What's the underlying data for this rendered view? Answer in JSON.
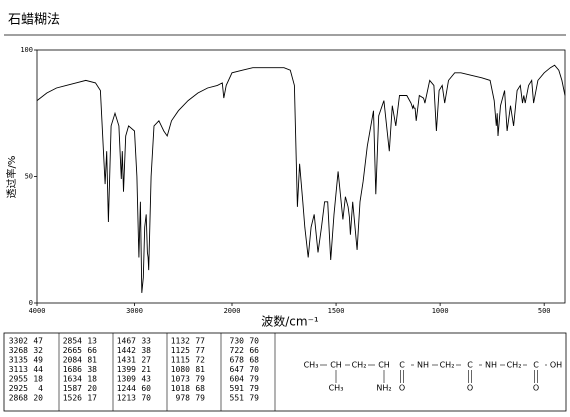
{
  "chart_data": {
    "type": "line",
    "title": "石蜡糊法",
    "x_label": "波数/cm⁻¹",
    "y_label": "透过率/%",
    "x_scale_change": 2000,
    "color": "#000000",
    "x": [
      4000,
      3900,
      3800,
      3700,
      3600,
      3500,
      3400,
      3350,
      3302,
      3285,
      3268,
      3240,
      3200,
      3160,
      3135,
      3125,
      3113,
      3090,
      3060,
      3000,
      2975,
      2955,
      2940,
      2925,
      2910,
      2895,
      2880,
      2868,
      2860,
      2854,
      2830,
      2800,
      2750,
      2700,
      2665,
      2620,
      2550,
      2450,
      2350,
      2250,
      2150,
      2100,
      2084,
      2060,
      2000,
      1950,
      1900,
      1850,
      1800,
      1750,
      1720,
      1700,
      1686,
      1675,
      1660,
      1650,
      1634,
      1620,
      1605,
      1587,
      1570,
      1555,
      1540,
      1526,
      1510,
      1490,
      1467,
      1455,
      1442,
      1436,
      1431,
      1420,
      1399,
      1385,
      1370,
      1350,
      1320,
      1309,
      1295,
      1270,
      1244,
      1230,
      1213,
      1195,
      1160,
      1140,
      1132,
      1128,
      1125,
      1120,
      1115,
      1100,
      1080,
      1076,
      1073,
      1050,
      1030,
      1018,
      1005,
      990,
      978,
      960,
      930,
      900,
      850,
      800,
      760,
      740,
      730,
      726,
      722,
      710,
      690,
      678,
      662,
      647,
      630,
      615,
      604,
      598,
      591,
      575,
      560,
      551,
      530,
      500,
      470,
      450,
      430,
      415,
      400
    ],
    "values": [
      80,
      83,
      85,
      86,
      87,
      88,
      87,
      84,
      47,
      60,
      32,
      70,
      75,
      70,
      49,
      60,
      44,
      66,
      70,
      68,
      50,
      18,
      40,
      4,
      10,
      30,
      35,
      20,
      18,
      13,
      50,
      70,
      72,
      68,
      66,
      72,
      76,
      80,
      83,
      85,
      86,
      87,
      81,
      86,
      91,
      92,
      93,
      93,
      93,
      93,
      92,
      86,
      38,
      55,
      40,
      30,
      18,
      30,
      35,
      20,
      30,
      40,
      40,
      17,
      35,
      52,
      33,
      42,
      38,
      34,
      27,
      40,
      21,
      40,
      48,
      62,
      76,
      43,
      74,
      80,
      60,
      78,
      70,
      82,
      82,
      79,
      77,
      78,
      77,
      77,
      72,
      82,
      81,
      80,
      79,
      88,
      86,
      68,
      84,
      86,
      79,
      88,
      91,
      91,
      90,
      89,
      88,
      80,
      70,
      75,
      66,
      78,
      84,
      68,
      78,
      70,
      84,
      86,
      79,
      82,
      79,
      86,
      88,
      79,
      88,
      91,
      93,
      94,
      92,
      88,
      82
    ],
    "xlim": [
      4000,
      400
    ],
    "xticks": [
      4000,
      3000,
      2000,
      1500,
      1000,
      500
    ],
    "ylim": [
      0,
      100
    ],
    "yticks": [
      0,
      50,
      100
    ]
  },
  "peak_table": [
    [
      [
        3302,
        47
      ],
      [
        3268,
        32
      ],
      [
        3135,
        49
      ],
      [
        3113,
        44
      ],
      [
        2955,
        18
      ],
      [
        2925,
        4
      ],
      [
        2868,
        20
      ]
    ],
    [
      [
        2854,
        13
      ],
      [
        2665,
        66
      ],
      [
        2084,
        81
      ],
      [
        1686,
        38
      ],
      [
        1634,
        18
      ],
      [
        1587,
        20
      ],
      [
        1526,
        17
      ]
    ],
    [
      [
        1467,
        33
      ],
      [
        1442,
        38
      ],
      [
        1431,
        27
      ],
      [
        1399,
        21
      ],
      [
        1309,
        43
      ],
      [
        1244,
        60
      ],
      [
        1213,
        70
      ]
    ],
    [
      [
        1132,
        77
      ],
      [
        1125,
        77
      ],
      [
        1115,
        72
      ],
      [
        1080,
        81
      ],
      [
        1073,
        79
      ],
      [
        1018,
        68
      ],
      [
        978,
        79
      ]
    ],
    [
      [
        730,
        70
      ],
      [
        722,
        66
      ],
      [
        678,
        68
      ],
      [
        647,
        70
      ],
      [
        604,
        79
      ],
      [
        591,
        79
      ],
      [
        551,
        79
      ]
    ]
  ],
  "structure": {
    "main": [
      "CH₃",
      "CH",
      "CH₂",
      "CH",
      "C",
      "NH",
      "CH₂",
      "C",
      "NH",
      "CH₂",
      "C",
      "OH"
    ],
    "branch": [
      "CH₃",
      "NH₂",
      "O",
      "O",
      "O"
    ]
  }
}
